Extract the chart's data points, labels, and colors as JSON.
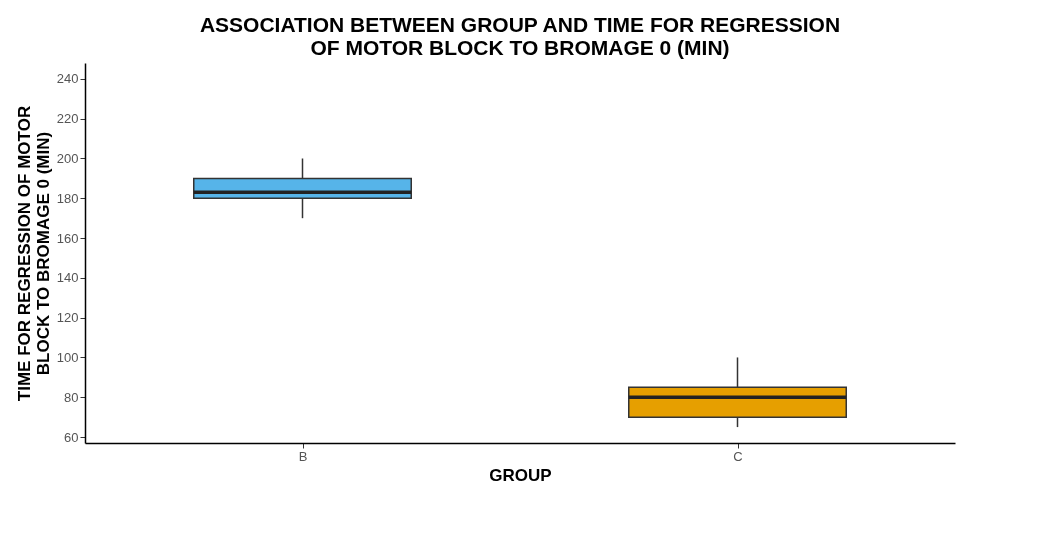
{
  "chart_data": {
    "type": "box",
    "title": [
      "ASSOCIATION BETWEEN GROUP AND TIME FOR REGRESSION",
      "OF MOTOR BLOCK TO BROMAGE 0 (MIN)"
    ],
    "xlabel": "GROUP",
    "ylabel": [
      "TIME FOR REGRESSION OF MOTOR",
      "BLOCK TO BROMAGE 0 (MIN)"
    ],
    "categories": [
      "B",
      "C"
    ],
    "series": [
      {
        "color": "#56b4e9",
        "boxes": [
          {
            "low": 170,
            "q1": 180,
            "median": 183,
            "q3": 190,
            "high": 200
          },
          null
        ]
      },
      {
        "color": "#e69f00",
        "boxes": [
          null,
          {
            "low": 65,
            "q1": 70,
            "median": 80,
            "q3": 85,
            "high": 100
          }
        ]
      }
    ],
    "ylim": [
      57,
      248
    ],
    "yticks": [
      60,
      80,
      100,
      120,
      140,
      160,
      180,
      200,
      220,
      240
    ],
    "grid": false
  }
}
